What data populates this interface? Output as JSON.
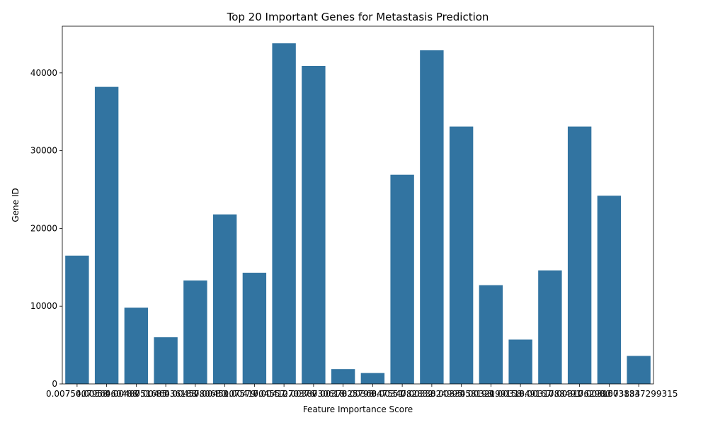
{
  "chart_data": {
    "type": "bar",
    "title": "Top 20 Important Genes for Metastasis Prediction",
    "xlabel": "Feature Importance Score",
    "ylabel": "Gene ID",
    "ylim": [
      0,
      46000
    ],
    "yticks": [
      0,
      10000,
      20000,
      30000,
      40000
    ],
    "grid": false,
    "bar_color": "#3274a1",
    "categories": [
      "0.0075407958",
      "0.0056460488",
      "0.0048751685",
      "0.0046436188",
      "0.0045780680",
      "0.0045107579",
      "0.0041704557",
      "0.0041270376",
      "0.0038730618",
      "0.0037825798",
      "0.0036847551",
      "0.0034782832",
      "0.0033824995",
      "0.0033458198",
      "0.0032199158",
      "0.0031849167",
      "0.0031788491",
      "0.0031762980",
      "0.0031573884",
      "0.0031337299315"
    ],
    "values": [
      16500,
      38200,
      9800,
      6000,
      13300,
      21800,
      14300,
      43800,
      40900,
      1900,
      1400,
      26900,
      42900,
      33100,
      12700,
      5700,
      14600,
      33100,
      24200,
      3600
    ]
  }
}
